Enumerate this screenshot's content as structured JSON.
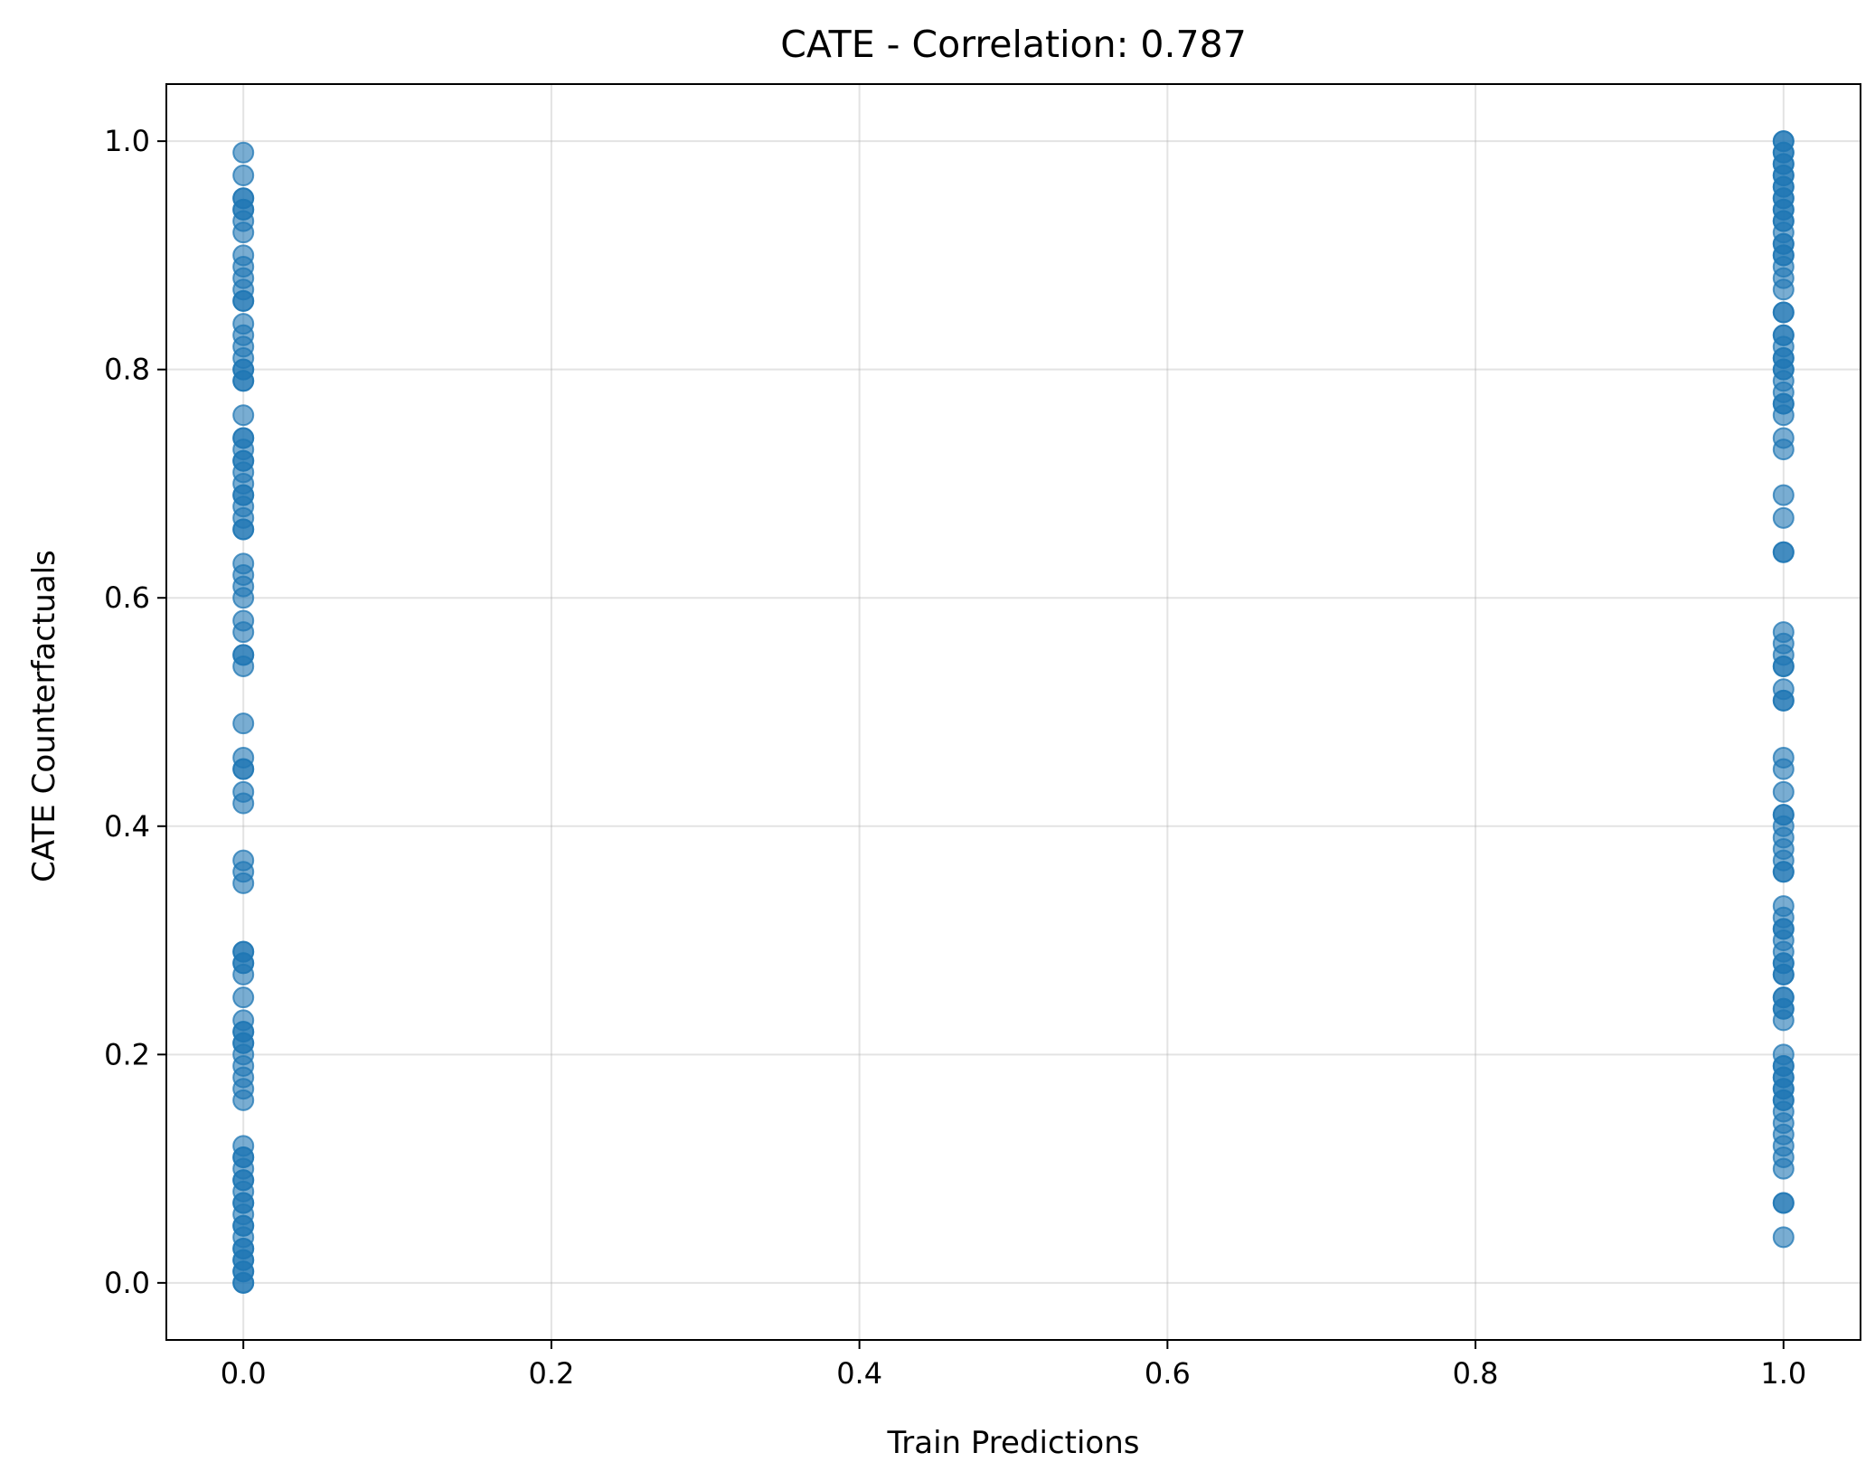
{
  "chart_data": {
    "type": "scatter",
    "title": "CATE - Correlation: 0.787",
    "xlabel": "Train Predictions",
    "ylabel": "CATE Counterfactuals",
    "xlim": [
      -0.05,
      1.05
    ],
    "ylim": [
      -0.05,
      1.05
    ],
    "xticks": [
      0.0,
      0.2,
      0.4,
      0.6,
      0.8,
      1.0
    ],
    "yticks": [
      0.0,
      0.2,
      0.4,
      0.6,
      0.8,
      1.0
    ],
    "xtick_labels": [
      "0.0",
      "0.2",
      "0.4",
      "0.6",
      "0.8",
      "1.0"
    ],
    "ytick_labels": [
      "0.0",
      "0.2",
      "0.4",
      "0.6",
      "0.8",
      "1.0"
    ],
    "grid": true,
    "marker_color": "#1f77b4",
    "marker_alpha": 0.6,
    "series": [
      {
        "x": 0,
        "y": [
          0.99,
          0.97,
          0.95,
          0.95,
          0.94,
          0.94,
          0.93,
          0.92,
          0.9,
          0.89,
          0.88,
          0.87,
          0.86,
          0.86,
          0.84,
          0.83,
          0.82,
          0.81,
          0.8,
          0.8,
          0.79,
          0.79,
          0.76,
          0.74,
          0.74,
          0.73,
          0.72,
          0.72,
          0.71,
          0.7,
          0.69,
          0.69,
          0.68,
          0.67,
          0.66,
          0.66,
          0.63,
          0.62,
          0.61,
          0.6,
          0.58,
          0.57,
          0.55,
          0.55,
          0.54,
          0.49,
          0.46,
          0.45,
          0.45,
          0.43,
          0.42,
          0.37,
          0.36,
          0.35,
          0.29,
          0.29,
          0.28,
          0.28,
          0.27,
          0.25,
          0.23,
          0.22,
          0.22,
          0.21,
          0.21,
          0.2,
          0.19,
          0.18,
          0.17,
          0.16,
          0.12,
          0.11,
          0.11,
          0.1,
          0.09,
          0.09,
          0.08,
          0.07,
          0.07,
          0.06,
          0.05,
          0.05,
          0.04,
          0.03,
          0.03,
          0.02,
          0.02,
          0.01,
          0.01,
          0.0,
          0.0
        ]
      },
      {
        "x": 1,
        "y": [
          1.0,
          1.0,
          0.99,
          0.99,
          0.98,
          0.98,
          0.97,
          0.97,
          0.96,
          0.96,
          0.95,
          0.95,
          0.94,
          0.94,
          0.93,
          0.93,
          0.92,
          0.91,
          0.91,
          0.9,
          0.9,
          0.89,
          0.88,
          0.87,
          0.85,
          0.85,
          0.83,
          0.83,
          0.82,
          0.81,
          0.81,
          0.8,
          0.8,
          0.79,
          0.78,
          0.77,
          0.77,
          0.76,
          0.74,
          0.73,
          0.69,
          0.67,
          0.64,
          0.64,
          0.57,
          0.56,
          0.55,
          0.54,
          0.54,
          0.52,
          0.51,
          0.51,
          0.46,
          0.45,
          0.43,
          0.41,
          0.41,
          0.4,
          0.39,
          0.38,
          0.37,
          0.36,
          0.36,
          0.33,
          0.32,
          0.31,
          0.31,
          0.3,
          0.29,
          0.28,
          0.28,
          0.27,
          0.27,
          0.25,
          0.25,
          0.24,
          0.24,
          0.23,
          0.2,
          0.19,
          0.19,
          0.18,
          0.18,
          0.17,
          0.17,
          0.16,
          0.16,
          0.15,
          0.14,
          0.13,
          0.12,
          0.11,
          0.1,
          0.07,
          0.07,
          0.04
        ]
      }
    ]
  }
}
